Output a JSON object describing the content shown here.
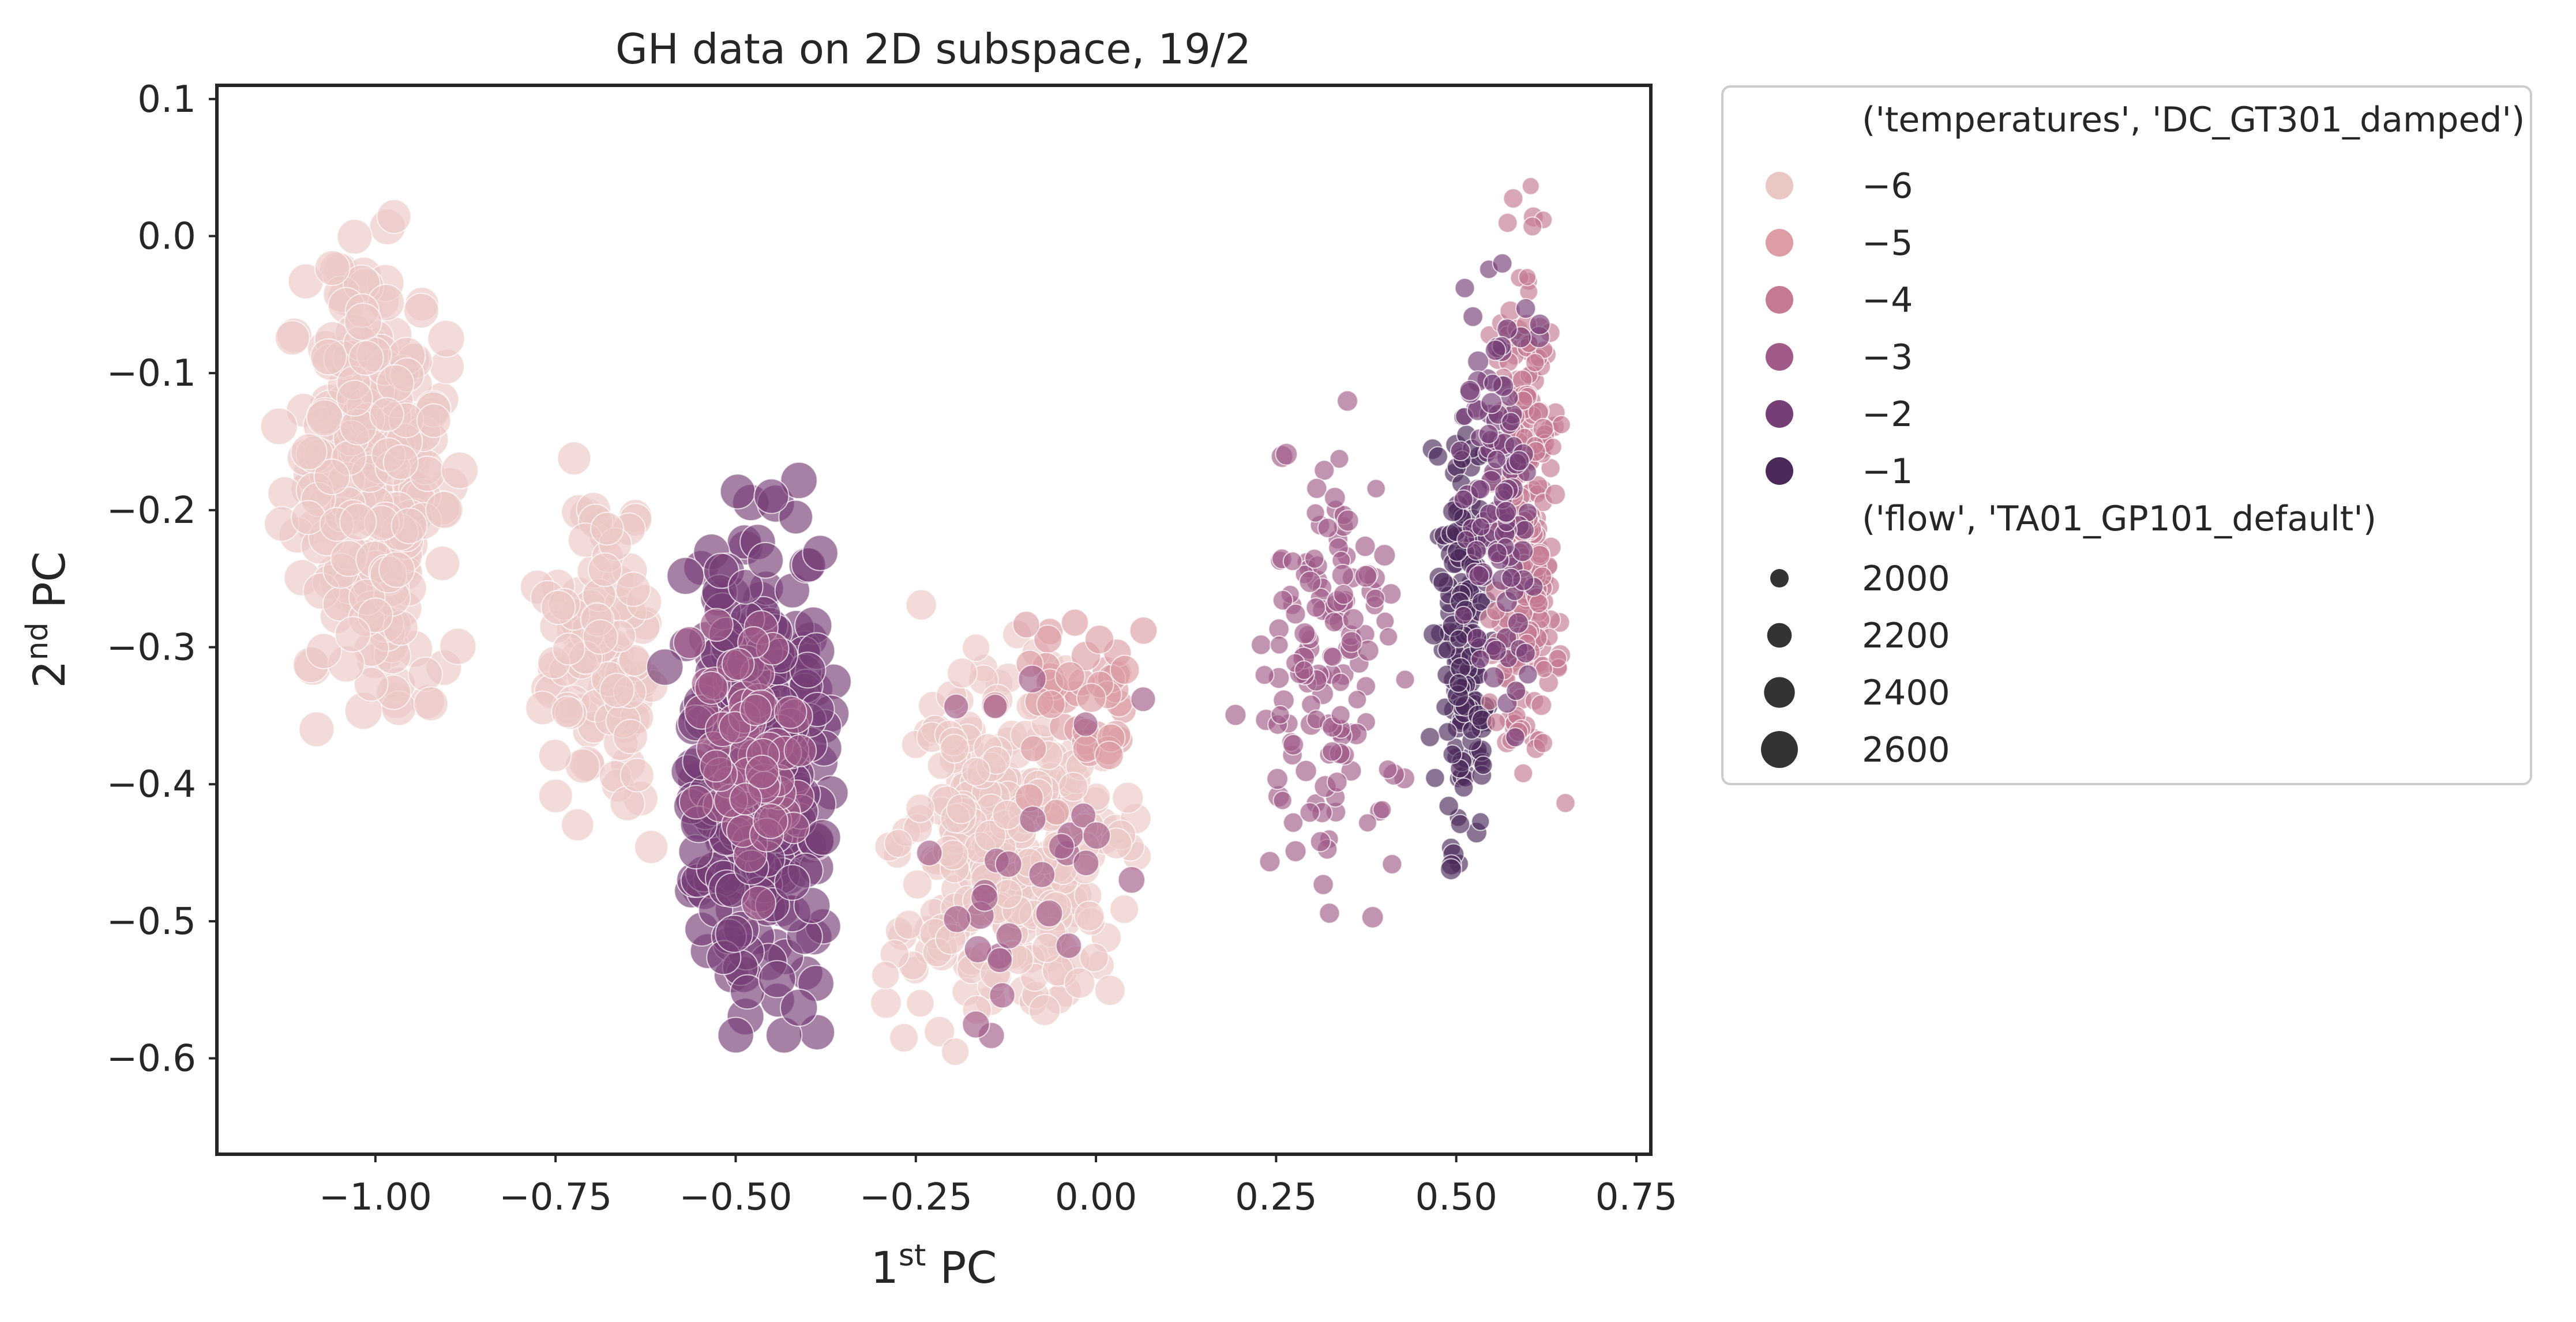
{
  "chart_data": {
    "type": "scatter",
    "title": "GH data on 2D subspace, 19/2",
    "xlabel": "1st PC",
    "ylabel": "2nd PC",
    "xlabel_parts": {
      "base": "1",
      "sup": "st",
      "rest": " PC"
    },
    "ylabel_parts": {
      "base": "2",
      "sup": "nd",
      "rest": " PC"
    },
    "xlim": [
      -1.22,
      0.77
    ],
    "ylim": [
      -0.67,
      0.11
    ],
    "xticks": [
      {
        "value": -1.0,
        "label": "−1.00"
      },
      {
        "value": -0.75,
        "label": "−0.75"
      },
      {
        "value": -0.5,
        "label": "−0.50"
      },
      {
        "value": -0.25,
        "label": "−0.25"
      },
      {
        "value": 0.0,
        "label": "0.00"
      },
      {
        "value": 0.25,
        "label": "0.25"
      },
      {
        "value": 0.5,
        "label": "0.50"
      },
      {
        "value": 0.75,
        "label": "0.75"
      }
    ],
    "yticks": [
      {
        "value": 0.1,
        "label": "0.1"
      },
      {
        "value": 0.0,
        "label": "0.0"
      },
      {
        "value": -0.1,
        "label": "−0.1"
      },
      {
        "value": -0.2,
        "label": "−0.2"
      },
      {
        "value": -0.3,
        "label": "−0.3"
      },
      {
        "value": -0.4,
        "label": "−0.4"
      },
      {
        "value": -0.5,
        "label": "−0.5"
      },
      {
        "value": -0.6,
        "label": "−0.6"
      }
    ],
    "grid": false,
    "legend_placement": "outside-right",
    "hue": {
      "title": "('temperatures', 'DC_GT301_damped')",
      "levels": [
        {
          "value": -6,
          "label": "−6",
          "color": "#ebc7c4"
        },
        {
          "value": -5,
          "label": "−5",
          "color": "#dc9ea4"
        },
        {
          "value": -4,
          "label": "−4",
          "color": "#c57a91"
        },
        {
          "value": -3,
          "label": "−3",
          "color": "#a05b88"
        },
        {
          "value": -2,
          "label": "−2",
          "color": "#763e76"
        },
        {
          "value": -1,
          "label": "−1",
          "color": "#4b2a5b"
        }
      ]
    },
    "size": {
      "title": "('flow', 'TA01_GP101_default')",
      "levels": [
        {
          "value": 2000,
          "label": "2000"
        },
        {
          "value": 2200,
          "label": "2200"
        },
        {
          "value": 2400,
          "label": "2400"
        },
        {
          "value": 2600,
          "label": "2600"
        }
      ]
    },
    "clusters": [
      {
        "x": [
          -1.15,
          -0.85
        ],
        "y": [
          -0.4,
          0.05
        ],
        "hue": -6,
        "flow": 2550,
        "n": 260
      },
      {
        "x": [
          -0.82,
          -0.58
        ],
        "y": [
          -0.48,
          -0.12
        ],
        "hue": -6,
        "flow": 2480,
        "n": 110
      },
      {
        "x": [
          -0.62,
          -0.33
        ],
        "y": [
          -0.62,
          -0.15
        ],
        "hue": -2,
        "flow": 2550,
        "n": 330
      },
      {
        "x": [
          -0.58,
          -0.38
        ],
        "y": [
          -0.5,
          -0.25
        ],
        "hue": -3,
        "flow": 2480,
        "n": 60
      },
      {
        "x": [
          -0.35,
          0.1
        ],
        "y": [
          -0.63,
          -0.25
        ],
        "hue": -6,
        "flow": 2350,
        "n": 300
      },
      {
        "x": [
          -0.15,
          0.1
        ],
        "y": [
          -0.45,
          -0.25
        ],
        "hue": -5,
        "flow": 2300,
        "n": 50
      },
      {
        "x": [
          -0.3,
          0.1
        ],
        "y": [
          -0.62,
          -0.28
        ],
        "hue": -3,
        "flow": 2250,
        "n": 30
      },
      {
        "x": [
          0.18,
          0.46
        ],
        "y": [
          -0.57,
          -0.05
        ],
        "hue": -3,
        "flow": 2050,
        "n": 150
      },
      {
        "x": [
          0.46,
          0.56
        ],
        "y": [
          -0.52,
          -0.05
        ],
        "hue": -1,
        "flow": 2030,
        "n": 170
      },
      {
        "x": [
          0.53,
          0.66
        ],
        "y": [
          -0.48,
          0.07
        ],
        "hue": -4,
        "flow": 2020,
        "n": 270
      },
      {
        "x": [
          0.48,
          0.64
        ],
        "y": [
          -0.4,
          0.03
        ],
        "hue": -2,
        "flow": 2030,
        "n": 110
      }
    ]
  }
}
